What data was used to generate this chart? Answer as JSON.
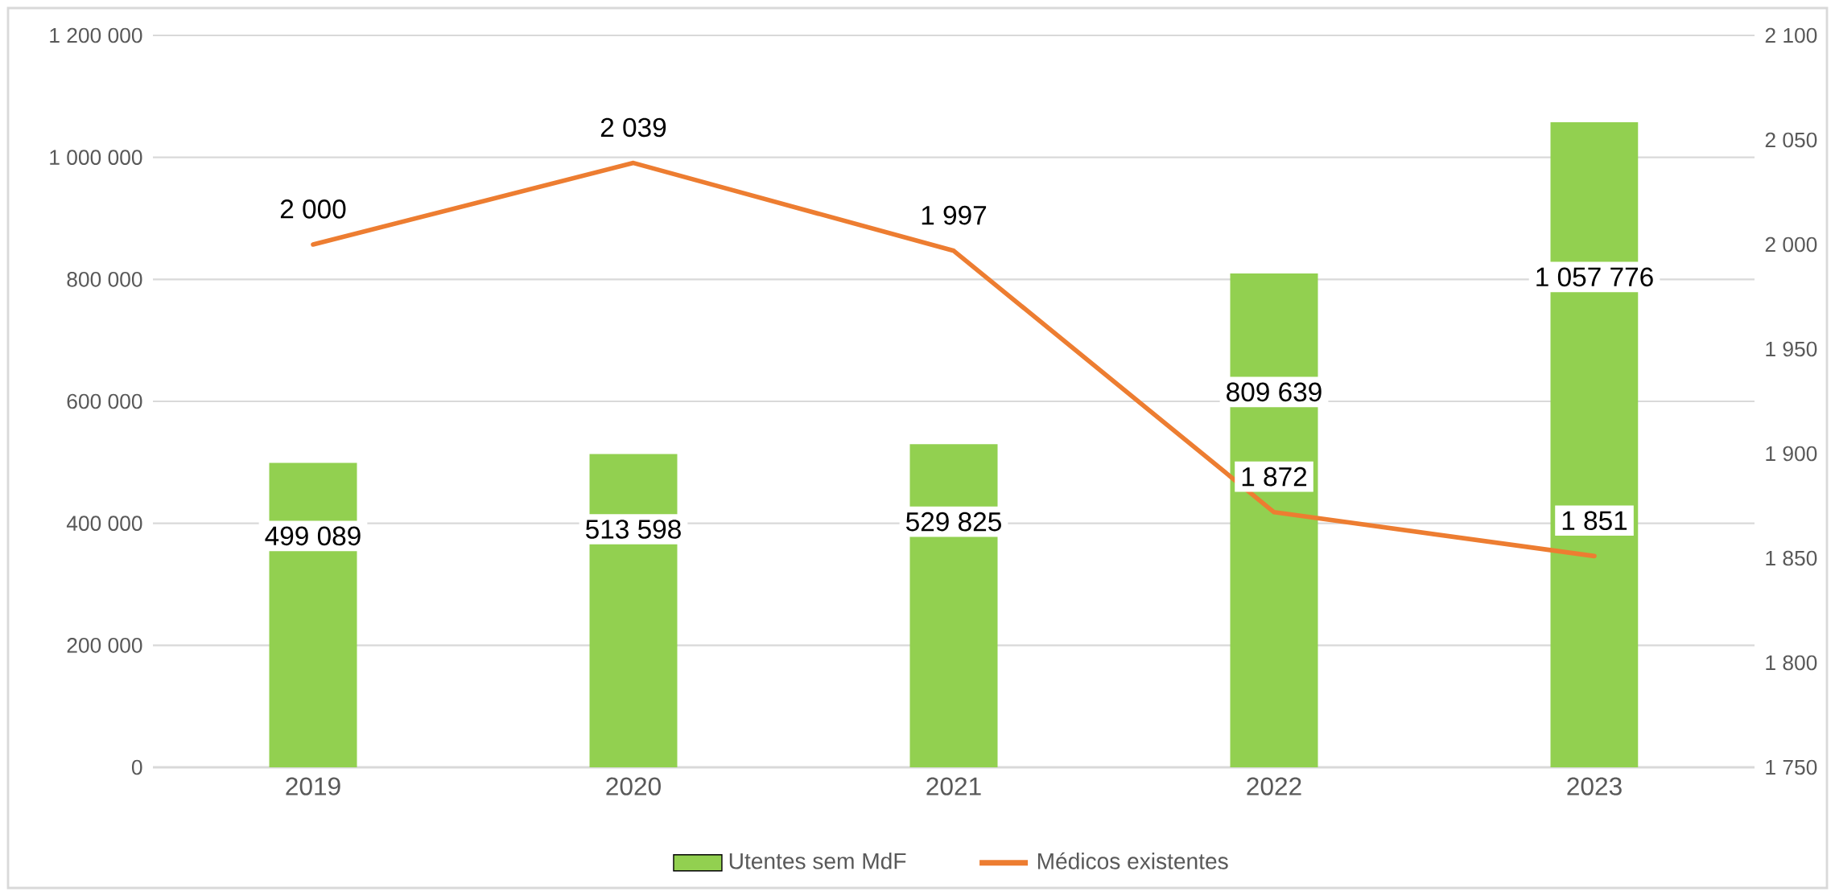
{
  "chart_data": {
    "type": "bar",
    "categories": [
      "2019",
      "2020",
      "2021",
      "2022",
      "2023"
    ],
    "series": [
      {
        "name": "Utentes sem MdF",
        "color": "#92d050",
        "values": [
          499089,
          513598,
          529825,
          809639,
          1057776
        ],
        "value_labels": [
          "499 089",
          "513 598",
          "529 825",
          "809 639",
          "1 057 776"
        ]
      },
      {
        "name": "Médicos existentes",
        "type": "line",
        "axis": "y2",
        "color": "#ed7d31",
        "values": [
          2000,
          2039,
          1997,
          1872,
          1851
        ],
        "value_labels": [
          "2 000",
          "2 039",
          "1 997",
          "1 872",
          "1 851"
        ]
      }
    ],
    "ylim": [
      0,
      1200000
    ],
    "yticks": [
      0,
      {
        "value": 200000,
        "label": "200 000"
      },
      {
        "value": 400000,
        "label": "400 000"
      },
      {
        "value": 600000,
        "label": "600 000"
      },
      {
        "value": 800000,
        "label": "800 000"
      },
      {
        "value": 1000000,
        "label": "1 000 000"
      },
      {
        "value": 1200000,
        "label": "1 200 000"
      }
    ],
    "y2lim": [
      1750,
      2100
    ],
    "y2ticks": [
      {
        "value": 1750,
        "label": "1 750"
      },
      {
        "value": 1800,
        "label": "1 800"
      },
      {
        "value": 1850,
        "label": "1 850"
      },
      {
        "value": 1900,
        "label": "1 900"
      },
      {
        "value": 1950,
        "label": "1 950"
      },
      {
        "value": 2000,
        "label": "2 000"
      },
      {
        "value": 2050,
        "label": "2 050"
      },
      {
        "value": 2100,
        "label": "2 100"
      }
    ],
    "grid": "y",
    "legend": "bottom"
  }
}
